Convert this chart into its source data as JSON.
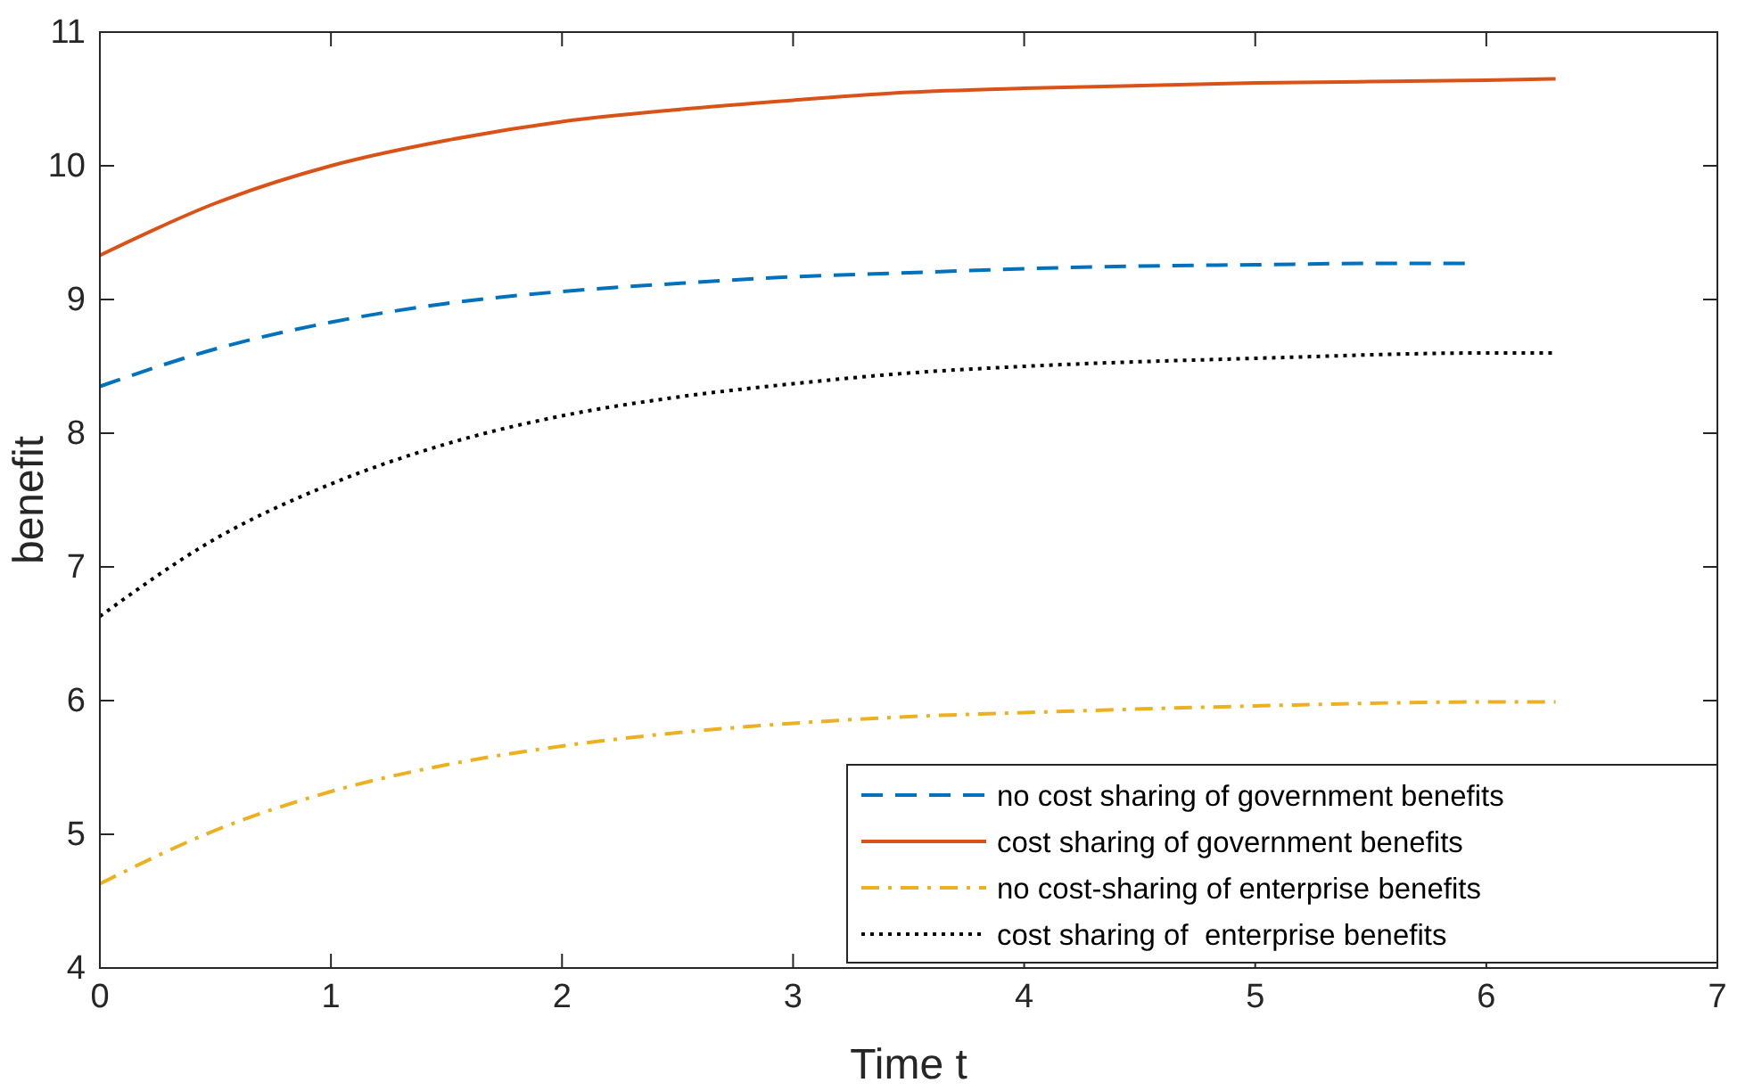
{
  "chart_data": {
    "type": "line",
    "xlabel": "Time t",
    "ylabel": "benefit",
    "xlim": [
      0,
      7
    ],
    "ylim": [
      4,
      11
    ],
    "xticks": [
      0,
      1,
      2,
      3,
      4,
      5,
      6,
      7
    ],
    "yticks": [
      4,
      5,
      6,
      7,
      8,
      9,
      10,
      11
    ],
    "grid": false,
    "legend": "bottom right",
    "series": [
      {
        "name": "no cost sharing of government benefits",
        "color": "#0072bd",
        "line_style": "dashed",
        "x": [
          0,
          0.5,
          1,
          1.5,
          2,
          2.5,
          3,
          3.5,
          4,
          4.5,
          5,
          5.5,
          5.92
        ],
        "values": [
          8.35,
          8.63,
          8.83,
          8.97,
          9.06,
          9.12,
          9.17,
          9.2,
          9.23,
          9.25,
          9.26,
          9.27,
          9.27
        ]
      },
      {
        "name": "cost sharing of government benefits",
        "color": "#d95319",
        "line_style": "solid",
        "x": [
          0,
          0.5,
          1,
          1.5,
          2,
          2.5,
          3,
          3.5,
          4,
          5,
          6,
          6.3
        ],
        "values": [
          9.33,
          9.72,
          10.0,
          10.19,
          10.33,
          10.42,
          10.49,
          10.55,
          10.58,
          10.62,
          10.64,
          10.65
        ]
      },
      {
        "name": "no cost-sharing of enterprise benefits",
        "color": "#edb120",
        "line_style": "dashdot",
        "x": [
          0,
          0.5,
          1,
          1.5,
          2,
          2.5,
          3,
          3.5,
          4,
          5,
          6,
          6.3
        ],
        "values": [
          4.63,
          5.03,
          5.32,
          5.52,
          5.66,
          5.76,
          5.83,
          5.88,
          5.91,
          5.96,
          5.99,
          5.99
        ]
      },
      {
        "name": "cost sharing of  enterprise benefits",
        "color": "#000000",
        "line_style": "dotted",
        "x": [
          0,
          0.5,
          1,
          1.5,
          2,
          2.5,
          3,
          3.5,
          4,
          5,
          6,
          6.3
        ],
        "values": [
          6.63,
          7.21,
          7.62,
          7.92,
          8.13,
          8.27,
          8.37,
          8.45,
          8.5,
          8.56,
          8.6,
          8.6
        ]
      }
    ]
  }
}
